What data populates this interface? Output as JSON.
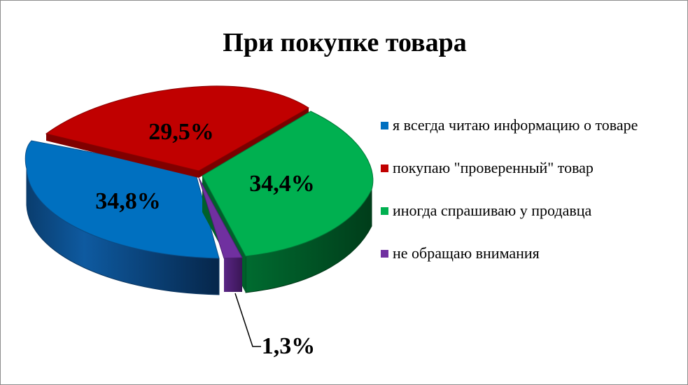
{
  "chart_data": {
    "type": "pie",
    "title": "При покупке товара",
    "slices": [
      {
        "label": "я всегда читаю информацию о товаре",
        "value": 34.8,
        "display": "34,8%",
        "color": "#0070C0"
      },
      {
        "label": "покупаю \"проверенный\" товар",
        "value": 29.5,
        "display": "29,5%",
        "color": "#C00000"
      },
      {
        "label": "иногда спрашиваю у продавца",
        "value": 34.4,
        "display": "34,4%",
        "color": "#00B050"
      },
      {
        "label": "не обращаю внимания",
        "value": 1.3,
        "display": "1,3%",
        "color": "#7030A0"
      }
    ],
    "three_d": true,
    "legend_position": "right"
  }
}
